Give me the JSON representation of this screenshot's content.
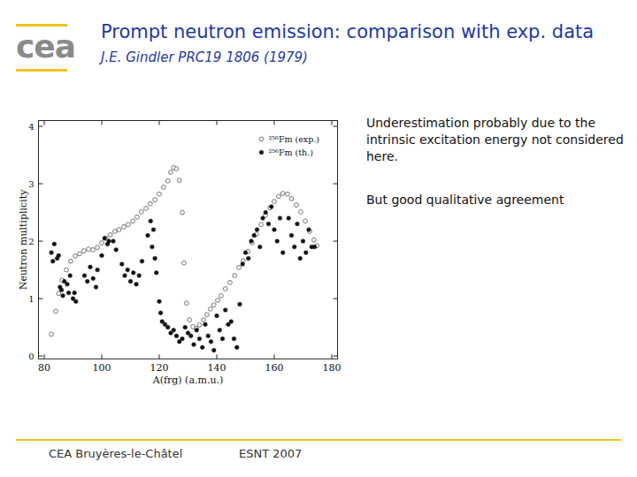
{
  "slide": {
    "logo": "cea",
    "title": "Prompt neutron emission: comparison with exp. data",
    "subtitle": "J.E. Gindler PRC19 1806 (1979)",
    "notes": [
      "Underestimation probably due to the intrinsic excitation energy not considered here.",
      "But good qualitative agreement"
    ],
    "footer_left": "CEA Bruyères-le-Châtel",
    "footer_right": "ESNT 2007"
  },
  "chart_data": {
    "type": "scatter",
    "x_label": "A(frg) (a.m.u.)",
    "y_label": "Neutron multiplicity",
    "xlim": [
      78,
      182
    ],
    "ylim": [
      -0.05,
      4.1
    ],
    "xticks": [
      80,
      100,
      120,
      140,
      160,
      180
    ],
    "yticks": [
      0,
      1,
      2,
      3,
      4
    ],
    "legend": "upper right",
    "series": [
      {
        "name": "²⁵⁶Fm (exp.)",
        "color": "#555555",
        "marker": "open-circle",
        "x": [
          82.5,
          84,
          85,
          86.2,
          87.7,
          89.2,
          90.8,
          92.3,
          93.8,
          95.4,
          96.9,
          98.5,
          100,
          101.5,
          103,
          104.6,
          106,
          107.7,
          109.2,
          110.8,
          112.3,
          113.8,
          115.4,
          116.9,
          118.5,
          120,
          121.5,
          123,
          124,
          125,
          126,
          127,
          128,
          128.6,
          129.5,
          130.5,
          131.7,
          132.9,
          134,
          135.4,
          136.6,
          137.8,
          139,
          140.3,
          141.5,
          143,
          144.6,
          146.2,
          147.7,
          149.2,
          150.8,
          152.3,
          153.8,
          155.4,
          156.9,
          158.5,
          160,
          161.5,
          163,
          164.6,
          166,
          167.7,
          169.2,
          170.8,
          172.3,
          173.8,
          174.8
        ],
        "values": [
          0.38,
          0.78,
          1.09,
          1.32,
          1.5,
          1.65,
          1.74,
          1.78,
          1.83,
          1.86,
          1.85,
          1.89,
          1.97,
          2.05,
          2.11,
          2.17,
          2.2,
          2.25,
          2.29,
          2.35,
          2.42,
          2.51,
          2.57,
          2.65,
          2.72,
          2.82,
          2.94,
          3.05,
          3.2,
          3.28,
          3.26,
          3.06,
          2.5,
          1.62,
          0.92,
          0.63,
          0.51,
          0.48,
          0.54,
          0.63,
          0.72,
          0.82,
          0.89,
          0.97,
          1.05,
          1.17,
          1.28,
          1.4,
          1.54,
          1.66,
          1.82,
          1.97,
          2.12,
          2.29,
          2.45,
          2.58,
          2.69,
          2.78,
          2.83,
          2.82,
          2.74,
          2.63,
          2.51,
          2.35,
          2.17,
          2.02,
          1.92
        ]
      },
      {
        "name": "²⁵⁶Fm (th.)",
        "color": "#111111",
        "marker": "filled-circle",
        "x": [
          82.5,
          83,
          83.5,
          84.5,
          85,
          85.5,
          86,
          86.5,
          87,
          88,
          88.5,
          89,
          90,
          90.5,
          91,
          94,
          95,
          96,
          97,
          98,
          98.5,
          100,
          101,
          102,
          102.5,
          104,
          105,
          107,
          108,
          109,
          110,
          111,
          112,
          113,
          114,
          116,
          117,
          117.5,
          118,
          118.5,
          119,
          120,
          120.5,
          121,
          122,
          123,
          124,
          125,
          126,
          127,
          128,
          129,
          130,
          131,
          132,
          133,
          134,
          135,
          136,
          137,
          138,
          139,
          140,
          141,
          142,
          143,
          144,
          145,
          146,
          147,
          148,
          149,
          150,
          151,
          152,
          153,
          154,
          155,
          156,
          157,
          158,
          159,
          160,
          161,
          162,
          163,
          165,
          166,
          167,
          168,
          169,
          170,
          171,
          172,
          173,
          174
        ],
        "values": [
          1.8,
          1.65,
          1.95,
          1.7,
          1.75,
          1.2,
          1.15,
          1.05,
          1.3,
          1.25,
          1.1,
          1.4,
          1.0,
          1.1,
          0.95,
          1.4,
          1.3,
          1.55,
          1.35,
          1.2,
          1.5,
          1.75,
          2.05,
          1.95,
          2.0,
          2.0,
          1.85,
          1.6,
          1.4,
          1.5,
          1.3,
          1.45,
          1.25,
          1.4,
          1.65,
          2.1,
          2.35,
          1.9,
          2.2,
          1.7,
          1.45,
          0.95,
          0.75,
          0.6,
          0.55,
          0.5,
          0.4,
          0.45,
          0.35,
          0.25,
          0.3,
          0.5,
          0.4,
          0.35,
          0.2,
          0.45,
          0.3,
          0.15,
          0.55,
          0.35,
          0.25,
          0.1,
          0.7,
          0.45,
          0.3,
          0.8,
          0.55,
          0.6,
          0.3,
          0.15,
          0.9,
          1.6,
          1.8,
          1.7,
          2.0,
          2.1,
          2.2,
          1.9,
          2.4,
          2.5,
          2.3,
          2.6,
          2.2,
          2.0,
          2.4,
          1.8,
          2.4,
          2.1,
          1.9,
          2.3,
          1.7,
          2.0,
          1.8,
          2.2,
          1.9,
          1.9
        ]
      }
    ]
  }
}
